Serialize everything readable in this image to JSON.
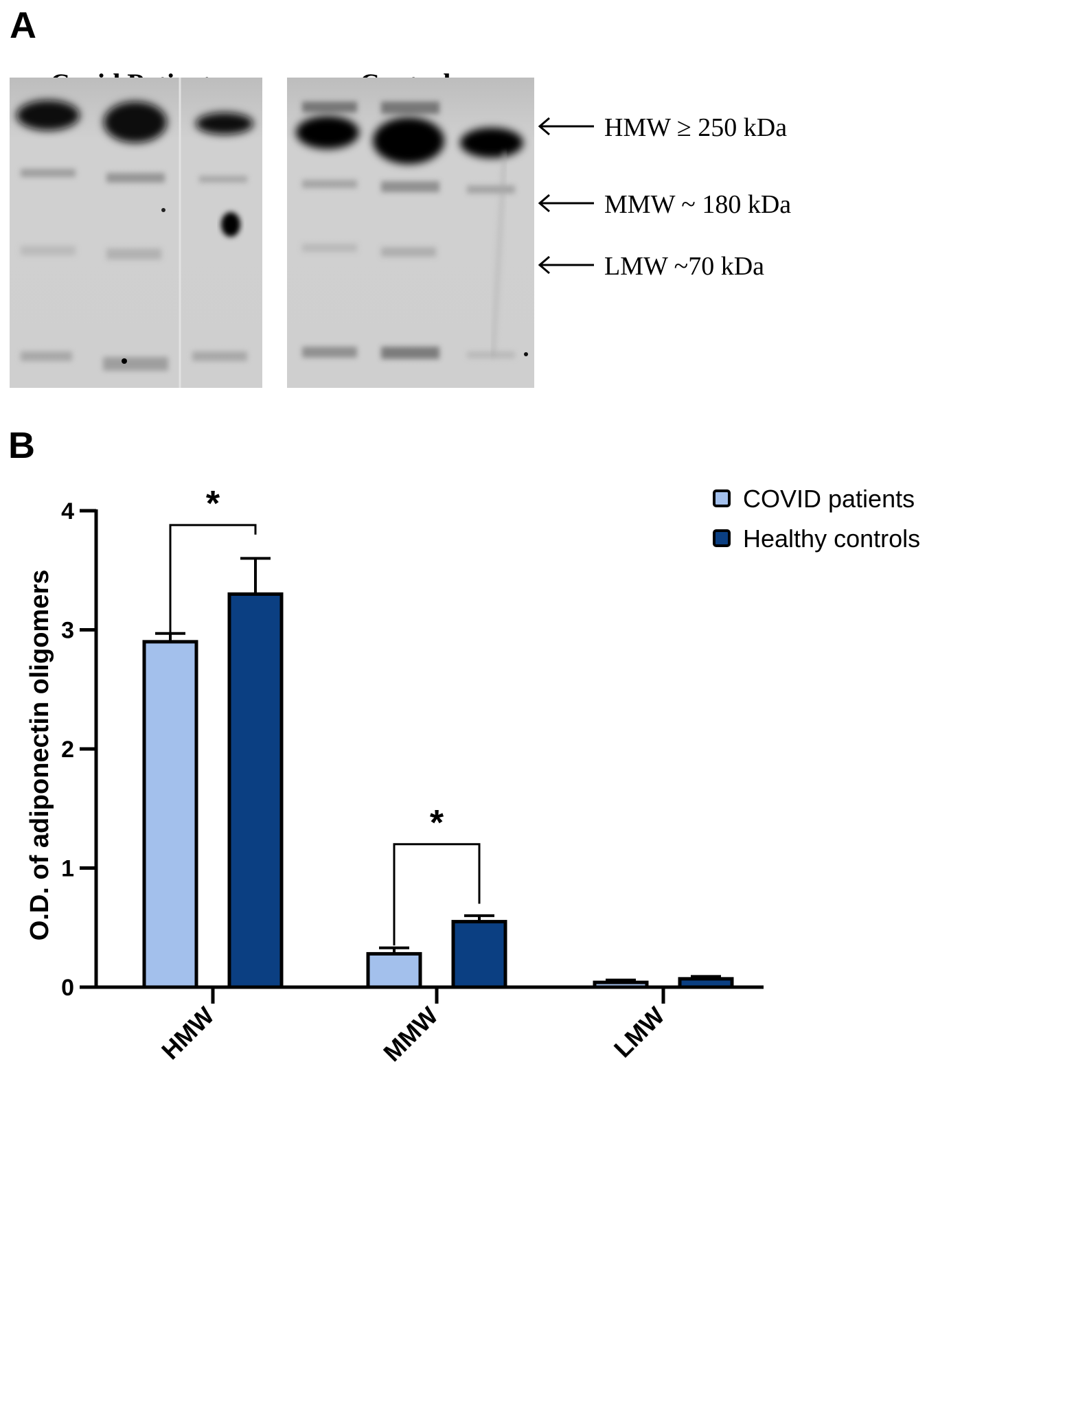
{
  "panel_a": {
    "letter": "A",
    "groups": [
      {
        "title": "Covid Patients"
      },
      {
        "title": "Controls"
      }
    ],
    "markers": [
      {
        "label": "HMW ≥ 250 kDa"
      },
      {
        "label": "MMW ~ 180 kDa"
      },
      {
        "label": "LMW ~70 kDa"
      }
    ]
  },
  "panel_b": {
    "letter": "B"
  },
  "chart_data": {
    "type": "bar",
    "categories": [
      "HMW",
      "MMW",
      "LMW"
    ],
    "series": [
      {
        "name": "COVID patients",
        "color": "#a3c0ec",
        "values": [
          2.9,
          0.28,
          0.04
        ],
        "errors": [
          0.07,
          0.05,
          0.02
        ]
      },
      {
        "name": "Healthy controls",
        "color": "#0b3f82",
        "values": [
          3.3,
          0.55,
          0.07
        ],
        "errors": [
          0.3,
          0.05,
          0.02
        ]
      }
    ],
    "ylabel": "O.D. of adiponectin oligomers",
    "xlabel": "",
    "ylim": [
      0,
      4
    ],
    "yticks": [
      0,
      1,
      2,
      3,
      4
    ],
    "legend_position": "top-right",
    "grid": false,
    "annotations": [
      {
        "category": "HMW",
        "text": "*",
        "bracket_bottom_left": 2.9,
        "bracket_bottom_right": 3.88,
        "bracket_top": 3.88
      },
      {
        "category": "MMW",
        "text": "*",
        "bracket_bottom_left": 0.55,
        "bracket_bottom_right": 0.55,
        "bracket_top": 1.2
      }
    ]
  }
}
